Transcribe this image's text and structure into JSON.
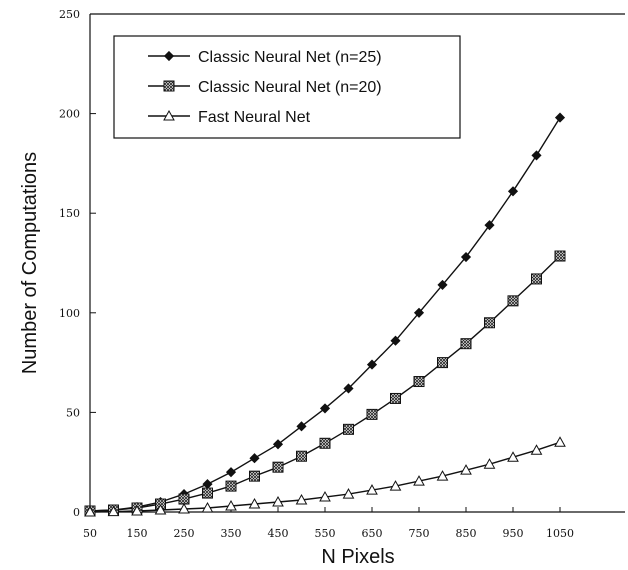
{
  "chart_data": {
    "type": "line",
    "title": "",
    "xlabel": "N Pixels",
    "ylabel": "Number of Computations",
    "xlim": [
      50,
      1050
    ],
    "ylim": [
      0,
      250
    ],
    "x_ticks": [
      "50",
      "150",
      "250",
      "350",
      "450",
      "550",
      "650",
      "750",
      "850",
      "950",
      "1050"
    ],
    "y_ticks": [
      "0",
      "50",
      "100",
      "150",
      "200",
      "250"
    ],
    "x": [
      50,
      100,
      150,
      200,
      250,
      300,
      350,
      400,
      450,
      500,
      550,
      600,
      650,
      700,
      750,
      800,
      850,
      900,
      950,
      1000,
      1050
    ],
    "grid": false,
    "legend_position": "top-left",
    "series": [
      {
        "name": "Classic Neural Net (n=25)",
        "marker": "diamond-filled",
        "values": [
          0.5,
          1.0,
          2.5,
          5.0,
          9.0,
          14.0,
          20.0,
          27.0,
          34.0,
          43.0,
          52.0,
          62.0,
          74.0,
          86.0,
          100.0,
          114.0,
          128.0,
          144.0,
          161.0,
          179.0,
          198.0
        ]
      },
      {
        "name": "Classic Neural Net (n=20)",
        "marker": "square-hatched",
        "values": [
          0.5,
          1.0,
          2.0,
          4.0,
          6.5,
          9.5,
          13.0,
          18.0,
          22.5,
          28.0,
          34.5,
          41.5,
          49.0,
          57.0,
          65.5,
          75.0,
          84.5,
          95.0,
          106.0,
          117.0,
          128.5
        ]
      },
      {
        "name": "Fast Neural Net",
        "marker": "triangle-open",
        "values": [
          0.0,
          0.2,
          0.5,
          1.0,
          1.5,
          2.0,
          3.0,
          4.0,
          5.0,
          6.0,
          7.5,
          9.0,
          11.0,
          13.0,
          15.5,
          18.0,
          21.0,
          24.0,
          27.5,
          31.0,
          35.0
        ]
      }
    ]
  }
}
